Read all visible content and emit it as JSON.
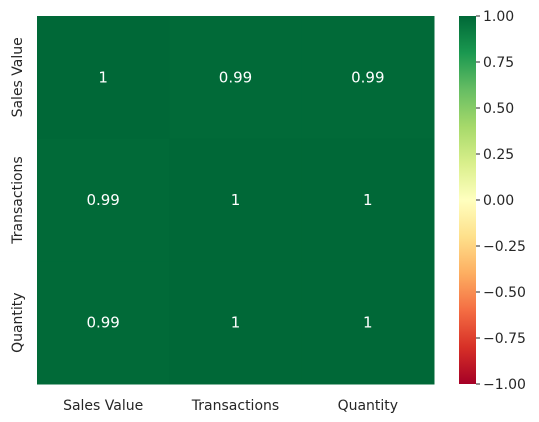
{
  "chart_data": {
    "type": "heatmap",
    "x_categories": [
      "Sales Value",
      "Transactions",
      "Quantity"
    ],
    "y_categories": [
      "Sales Value",
      "Transactions",
      "Quantity"
    ],
    "values": [
      [
        1.0,
        0.99,
        0.99
      ],
      [
        0.99,
        1.0,
        1.0
      ],
      [
        0.99,
        1.0,
        1.0
      ]
    ],
    "annotations": [
      [
        "1",
        "0.99",
        "0.99"
      ],
      [
        "0.99",
        "1",
        "1"
      ],
      [
        "0.99",
        "1",
        "1"
      ]
    ],
    "colormap": "RdYlGn",
    "vmin": -1.0,
    "vmax": 1.0,
    "colorbar_ticks": [
      "1.00",
      "0.75",
      "0.50",
      "0.25",
      "0.00",
      "−0.25",
      "−0.50",
      "−0.75",
      "−1.00"
    ],
    "colorbar_tick_values": [
      1.0,
      0.75,
      0.5,
      0.25,
      0.0,
      -0.25,
      -0.5,
      -0.75,
      -1.0
    ],
    "colors": {
      "high": "#006837",
      "cell_099": "#016a38",
      "annotation_text": "#ffffff",
      "tick_text": "#262626"
    }
  }
}
